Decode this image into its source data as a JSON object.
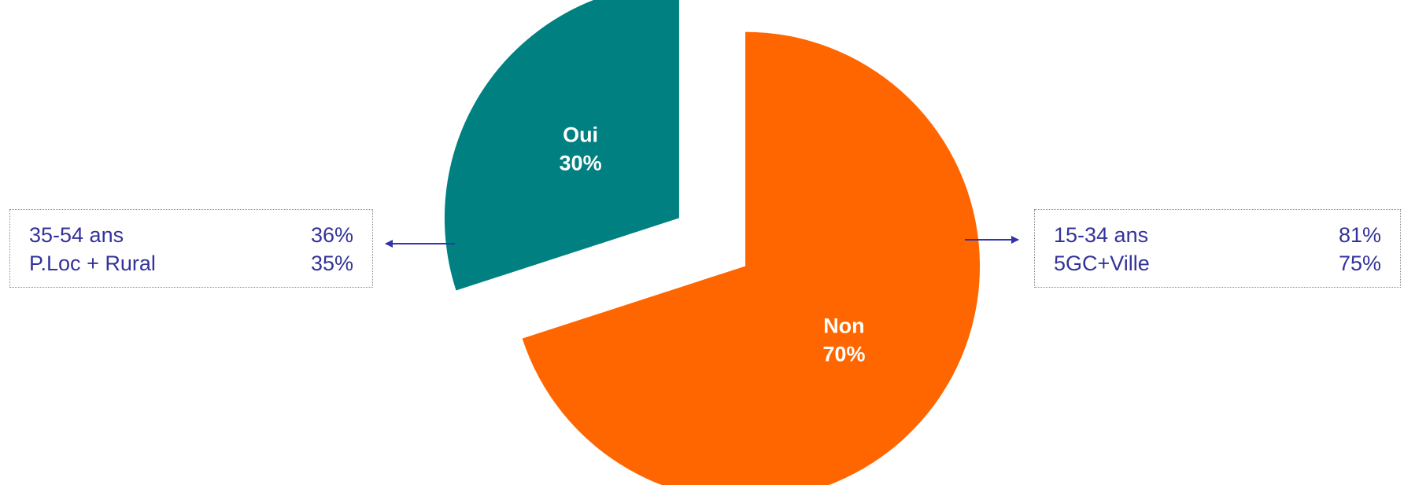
{
  "chart_data": {
    "type": "pie",
    "slices": [
      {
        "name": "Oui",
        "value": 30,
        "label": "30%",
        "color": "#008080"
      },
      {
        "name": "Non",
        "value": 70,
        "label": "70%",
        "color": "#FF6600"
      }
    ]
  },
  "annotations": {
    "oui": {
      "rows": [
        {
          "label": "35-54 ans",
          "value": "36%"
        },
        {
          "label": "P.Loc + Rural",
          "value": "35%"
        }
      ]
    },
    "non": {
      "rows": [
        {
          "label": "15-34 ans",
          "value": "81%"
        },
        {
          "label": "5GC+Ville",
          "value": "75%"
        }
      ]
    }
  },
  "colors": {
    "arrow": "#3333AA",
    "box_text": "#33339A",
    "box_border": "#8A8A8A"
  }
}
